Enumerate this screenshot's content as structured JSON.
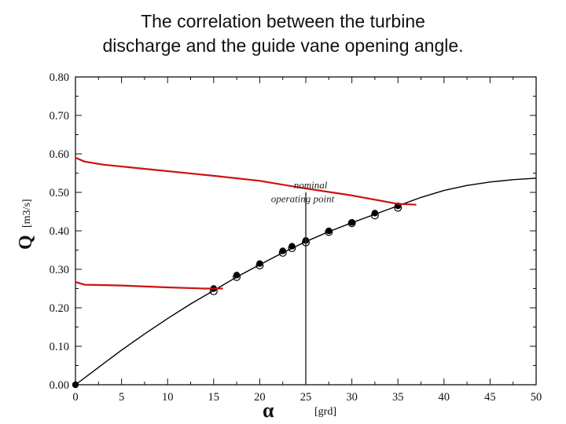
{
  "title_line1": "The correlation between the turbine",
  "title_line2": "discharge and the guide vane opening angle.",
  "chart_data": {
    "type": "scatter",
    "xlabel_symbol": "α",
    "xlabel_unit": "[grd]",
    "ylabel_symbol": "Q",
    "ylabel_unit": "[m3/s]",
    "xlim": [
      0,
      50
    ],
    "ylim": [
      0,
      0.8
    ],
    "xticks": [
      0,
      5,
      10,
      15,
      20,
      25,
      30,
      35,
      40,
      45,
      50
    ],
    "xtick_labels": [
      "0",
      "5",
      "10",
      "15",
      "20",
      "25",
      "30",
      "35",
      "40",
      "45",
      "50"
    ],
    "yticks": [
      0,
      0.1,
      0.2,
      0.3,
      0.4,
      0.5,
      0.6,
      0.7,
      0.8
    ],
    "ytick_labels": [
      "0.00",
      "0.10",
      "0.20",
      "0.30",
      "0.40",
      "0.50",
      "0.60",
      "0.70",
      "0.80"
    ],
    "grid": false,
    "annotation_line1": "nominal",
    "annotation_line2": "operating point",
    "nominal_x": 25,
    "series": [
      {
        "kind": "line",
        "color": "#000000",
        "x": [
          0,
          2.5,
          5,
          7.5,
          10,
          12.5,
          15,
          17.5,
          20,
          22.5,
          25,
          27.5,
          30,
          32.5,
          35,
          37.5,
          40,
          42.5,
          45,
          47.5,
          50
        ],
        "y": [
          0,
          0.045,
          0.09,
          0.132,
          0.172,
          0.21,
          0.245,
          0.28,
          0.312,
          0.343,
          0.372,
          0.398,
          0.421,
          0.443,
          0.465,
          0.487,
          0.505,
          0.518,
          0.527,
          0.533,
          0.537
        ]
      },
      {
        "kind": "filled-markers",
        "color": "#000000",
        "x": [
          0,
          15,
          17.5,
          20,
          22.5,
          23.5,
          25,
          27.5,
          30,
          32.5,
          35
        ],
        "y": [
          0,
          0.25,
          0.285,
          0.315,
          0.348,
          0.36,
          0.375,
          0.4,
          0.422,
          0.446,
          0.465
        ]
      },
      {
        "kind": "open-markers",
        "color": "#000000",
        "x": [
          15,
          17.5,
          20,
          22.5,
          23.5,
          25,
          27.5,
          30,
          32.5,
          35
        ],
        "y": [
          0.243,
          0.28,
          0.31,
          0.343,
          0.355,
          0.37,
          0.397,
          0.42,
          0.44,
          0.46
        ]
      },
      {
        "kind": "line",
        "color": "#cc1111",
        "x": [
          0,
          1,
          3,
          8,
          15,
          20,
          25,
          30,
          35,
          37
        ],
        "y": [
          0.59,
          0.58,
          0.572,
          0.56,
          0.543,
          0.53,
          0.51,
          0.492,
          0.47,
          0.468
        ]
      },
      {
        "kind": "line",
        "color": "#cc1111",
        "x": [
          0,
          1,
          5,
          10,
          14,
          16
        ],
        "y": [
          0.267,
          0.26,
          0.258,
          0.253,
          0.25,
          0.25
        ]
      }
    ]
  }
}
